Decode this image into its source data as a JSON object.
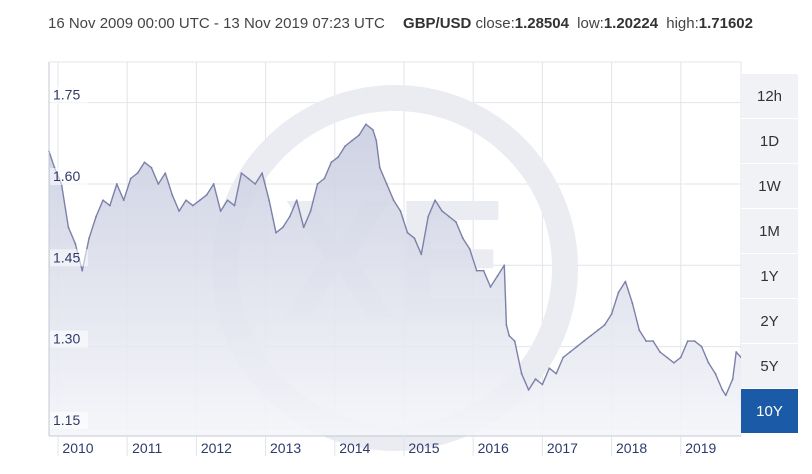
{
  "header": {
    "range": "16 Nov 2009 00:00 UTC - 13 Nov 2019 07:23 UTC",
    "pair": "GBP/USD",
    "close_label": "close:",
    "close_value": "1.28504",
    "low_label": "low:",
    "low_value": "1.20224",
    "high_label": "high:",
    "high_value": "1.71602"
  },
  "range_buttons": [
    {
      "label": "12h",
      "active": false
    },
    {
      "label": "1D",
      "active": false
    },
    {
      "label": "1W",
      "active": false
    },
    {
      "label": "1M",
      "active": false
    },
    {
      "label": "1Y",
      "active": false
    },
    {
      "label": "2Y",
      "active": false
    },
    {
      "label": "5Y",
      "active": false
    },
    {
      "label": "10Y",
      "active": true
    }
  ],
  "colors": {
    "line": "#7d80a8",
    "fill_top": "#c9cde0",
    "fill_bottom": "#f4f5f9",
    "active_button": "#1a5aa6",
    "watermark": "#ebecf2"
  },
  "watermark": "XE",
  "chart_data": {
    "type": "area",
    "title": "",
    "series": [
      {
        "x": [
          2009.87,
          2009.95,
          2010.05,
          2010.15,
          2010.25,
          2010.35,
          2010.45,
          2010.55,
          2010.65,
          2010.75,
          2010.85,
          2010.95,
          2011.05,
          2011.15,
          2011.25,
          2011.35,
          2011.45,
          2011.55,
          2011.65,
          2011.75,
          2011.85,
          2011.95,
          2012.05,
          2012.15,
          2012.25,
          2012.35,
          2012.45,
          2012.55,
          2012.65,
          2012.75,
          2012.85,
          2012.95,
          2013.05,
          2013.15,
          2013.25,
          2013.35,
          2013.45,
          2013.55,
          2013.65,
          2013.75,
          2013.85,
          2013.95,
          2014.05,
          2014.15,
          2014.25,
          2014.35,
          2014.45,
          2014.55,
          2014.6,
          2014.65,
          2014.75,
          2014.85,
          2014.95,
          2015.05,
          2015.15,
          2015.25,
          2015.35,
          2015.45,
          2015.55,
          2015.65,
          2015.75,
          2015.85,
          2015.95,
          2016.05,
          2016.15,
          2016.25,
          2016.35,
          2016.45,
          2016.48,
          2016.52,
          2016.6,
          2016.7,
          2016.8,
          2016.9,
          2017.0,
          2017.1,
          2017.2,
          2017.3,
          2017.4,
          2017.5,
          2017.6,
          2017.7,
          2017.8,
          2017.9,
          2018.0,
          2018.1,
          2018.2,
          2018.3,
          2018.4,
          2018.5,
          2018.6,
          2018.7,
          2018.8,
          2018.9,
          2019.0,
          2019.1,
          2019.2,
          2019.3,
          2019.4,
          2019.5,
          2019.6,
          2019.65,
          2019.75,
          2019.8,
          2019.87
        ],
        "y": [
          1.66,
          1.63,
          1.6,
          1.52,
          1.49,
          1.44,
          1.5,
          1.54,
          1.57,
          1.56,
          1.6,
          1.57,
          1.61,
          1.62,
          1.64,
          1.63,
          1.6,
          1.62,
          1.58,
          1.55,
          1.57,
          1.56,
          1.57,
          1.58,
          1.6,
          1.55,
          1.57,
          1.56,
          1.62,
          1.61,
          1.6,
          1.62,
          1.57,
          1.51,
          1.52,
          1.54,
          1.57,
          1.52,
          1.55,
          1.6,
          1.61,
          1.64,
          1.65,
          1.67,
          1.68,
          1.69,
          1.71,
          1.7,
          1.68,
          1.63,
          1.6,
          1.57,
          1.55,
          1.51,
          1.5,
          1.47,
          1.54,
          1.57,
          1.55,
          1.54,
          1.53,
          1.5,
          1.48,
          1.44,
          1.44,
          1.41,
          1.43,
          1.45,
          1.34,
          1.32,
          1.31,
          1.25,
          1.22,
          1.24,
          1.23,
          1.26,
          1.25,
          1.28,
          1.29,
          1.3,
          1.31,
          1.32,
          1.33,
          1.34,
          1.36,
          1.4,
          1.42,
          1.38,
          1.33,
          1.31,
          1.31,
          1.29,
          1.28,
          1.27,
          1.28,
          1.31,
          1.31,
          1.3,
          1.27,
          1.25,
          1.22,
          1.21,
          1.24,
          1.29,
          1.28
        ]
      }
    ],
    "x_ticks": [
      "2010",
      "2011",
      "2012",
      "2013",
      "2014",
      "2015",
      "2016",
      "2017",
      "2018",
      "2019"
    ],
    "x_tick_values": [
      2010,
      2011,
      2012,
      2013,
      2014,
      2015,
      2016,
      2017,
      2018,
      2019
    ],
    "y_ticks": [
      "1.75",
      "1.60",
      "1.45",
      "1.30",
      "1.15"
    ],
    "y_tick_values": [
      1.75,
      1.6,
      1.45,
      1.3,
      1.15
    ],
    "xlim": [
      2009.87,
      2019.87
    ],
    "ylim": [
      1.135,
      1.825
    ],
    "grid": true,
    "xlabel": "",
    "ylabel": ""
  }
}
